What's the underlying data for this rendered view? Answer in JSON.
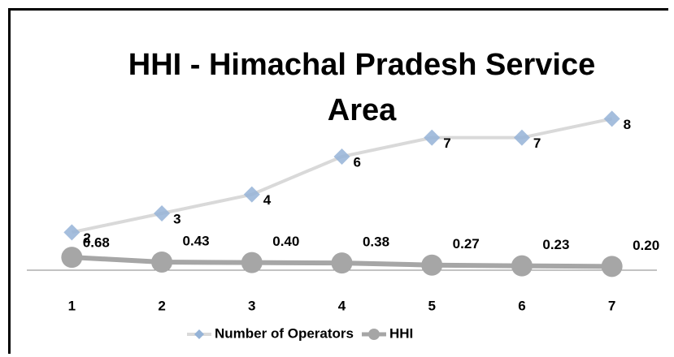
{
  "chart_data": {
    "type": "line",
    "title": "HHI - Himachal Pradesh Service Area",
    "categories": [
      "1",
      "2",
      "3",
      "4",
      "5",
      "6",
      "7"
    ],
    "ylim": [
      0,
      12
    ],
    "series": [
      {
        "name": "Number of Operators",
        "color": "#95b3d7",
        "line_color": "#d9d9d9",
        "marker": "diamond",
        "values": [
          2,
          3,
          4,
          6,
          7,
          7,
          8
        ]
      },
      {
        "name": "HHI",
        "color": "#a6a6a6",
        "line_color": "#a6a6a6",
        "marker": "circle",
        "values": [
          0.68,
          0.43,
          0.4,
          0.38,
          0.27,
          0.23,
          0.2
        ],
        "value_labels": [
          "0.68",
          "0.43",
          "0.40",
          "0.38",
          "0.27",
          "0.23",
          "0.20"
        ]
      }
    ]
  }
}
